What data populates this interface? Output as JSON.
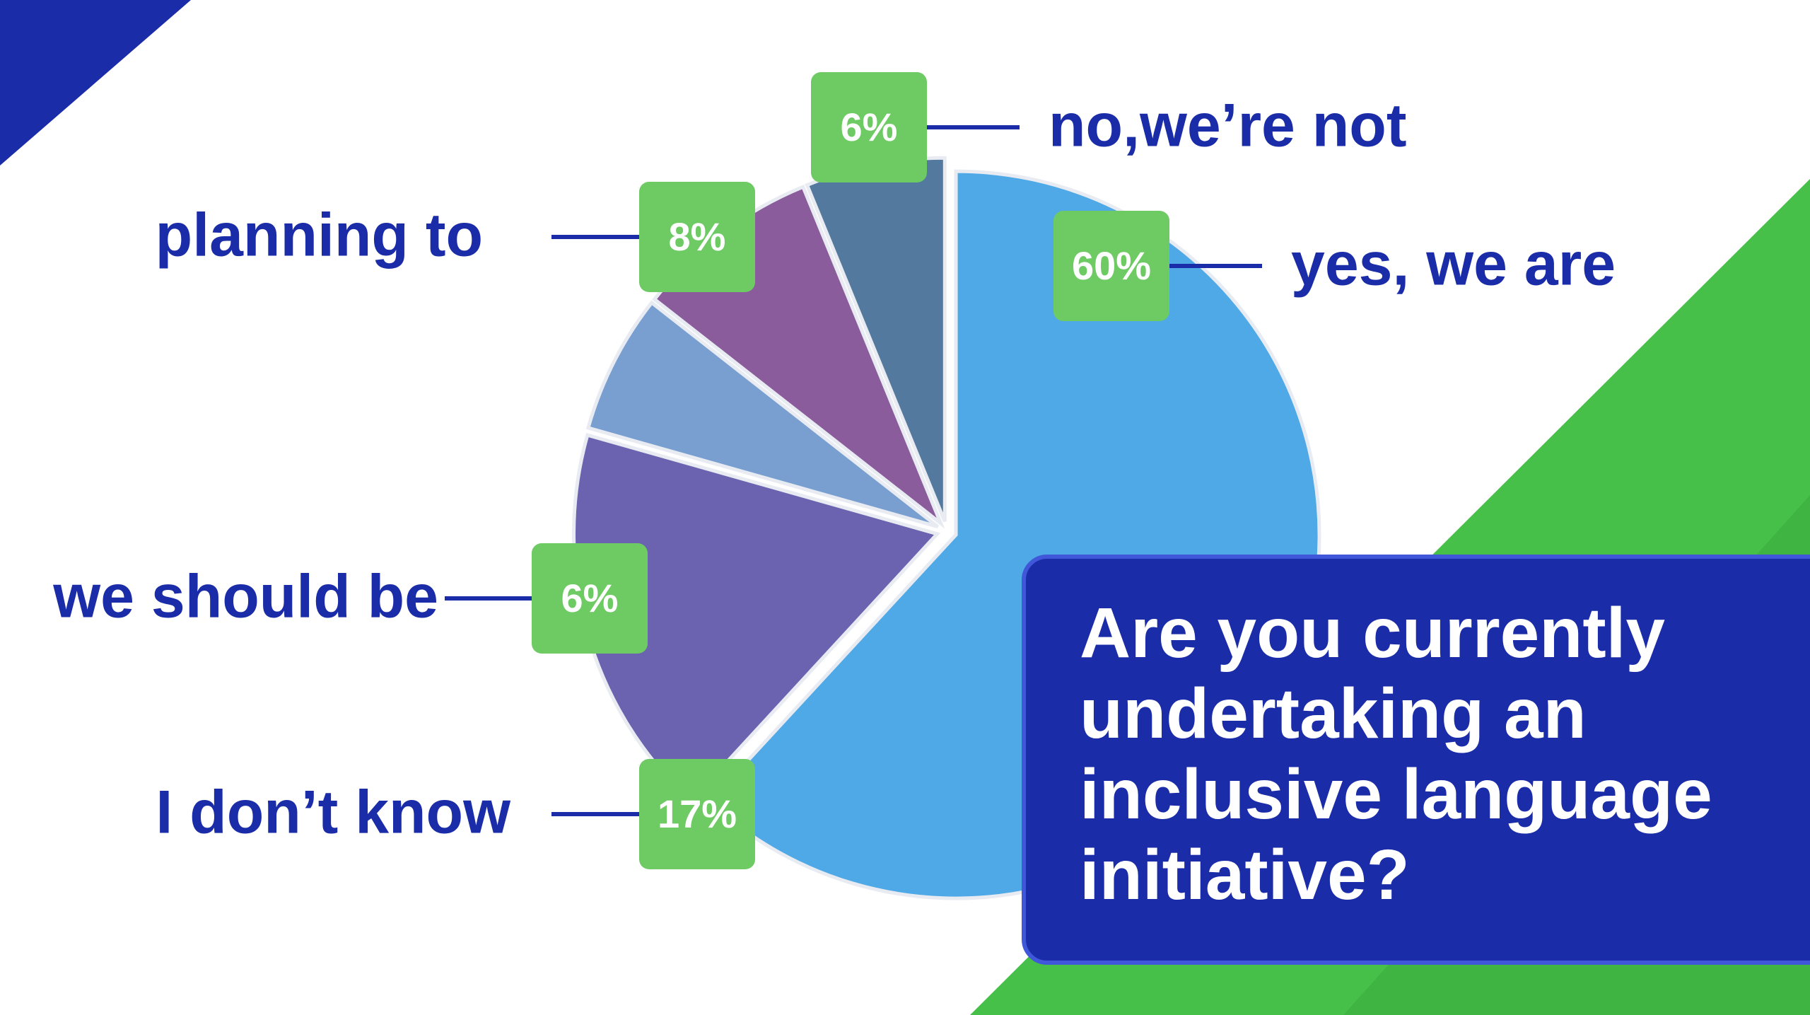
{
  "chart_data": {
    "type": "pie",
    "title": "Are you currently undertaking an inclusive language initiative?",
    "categories": [
      "yes, we are",
      "I don’t know",
      "we should be",
      "planning to",
      "no,we’re not"
    ],
    "values": [
      60,
      17,
      6,
      8,
      6
    ],
    "value_labels": [
      "60%",
      "17%",
      "6%",
      "8%",
      "6%"
    ],
    "colors": [
      "#4fa9e6",
      "#6c63b0",
      "#789fd0",
      "#8a5c9c",
      "#54799e"
    ]
  }
}
